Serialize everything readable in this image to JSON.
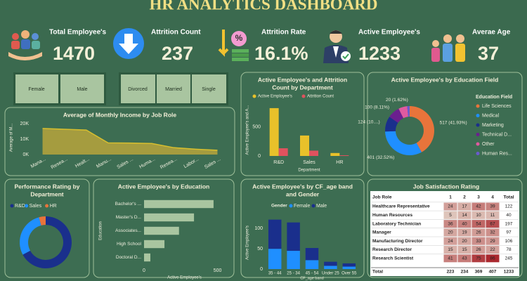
{
  "header": {
    "title": "HR ANALYTICS DASHBOARD"
  },
  "kpis": [
    {
      "label": "Total Employee's",
      "value": "1470"
    },
    {
      "label": "Attrition Count",
      "value": "237"
    },
    {
      "label": "Attrition Rate",
      "value": "16.1%"
    },
    {
      "label": "Active Employee's",
      "value": "1233"
    },
    {
      "label": "Averae Age",
      "value": "37"
    }
  ],
  "filters": [
    [
      "Female",
      "Male"
    ],
    [
      "Divorced",
      "Married",
      "Single"
    ]
  ],
  "chart_data": [
    {
      "type": "area",
      "title": [
        "Average of Monthly Income by Job Role"
      ],
      "y_label": "Average of M...",
      "categories": [
        "Mana...",
        "Resea...",
        "Healt...",
        "Manu...",
        "Sales ...",
        "Huma...",
        "Resea...",
        "Labor...",
        "Sales ..."
      ],
      "values": [
        17000,
        16500,
        16000,
        7600,
        7500,
        7200,
        4500,
        3500,
        2800
      ],
      "color": "#b7a43c",
      "ylim": [
        0,
        22000
      ],
      "yticks": [
        {
          "value": 0,
          "label": "0K"
        },
        {
          "value": 10000,
          "label": "10K"
        },
        {
          "value": 20000,
          "label": "20K"
        }
      ]
    },
    {
      "type": "bar",
      "title": [
        "Active Employee's and Attrition",
        "Count by Department"
      ],
      "x_label": "Department",
      "y_label": "Active Employee's and A...",
      "categories": [
        "R&D",
        "Sales",
        "HR"
      ],
      "series": [
        {
          "name": "Active Employee's",
          "color": "#e8c12a",
          "values": [
            828,
            354,
            51
          ]
        },
        {
          "name": "Attrition Count",
          "color": "#e0525e",
          "values": [
            133,
            92,
            12
          ]
        }
      ],
      "ylim": [
        0,
        900
      ],
      "yticks": [
        0,
        500
      ],
      "legend": "top"
    },
    {
      "type": "donut",
      "title": [
        "Active Employee's by Education Field"
      ],
      "legend_title": "Education Field",
      "categories": [
        "Life Sciences",
        "Medical",
        "Marketing",
        "Technical D...",
        "Other",
        "Human Res..."
      ],
      "values": [
        517,
        401,
        124,
        100,
        71,
        20
      ],
      "value_labels": [
        "517 (41.93%)",
        "401 (32.52%)",
        "124 (10....)",
        "100 (8.11%)",
        null,
        "20 (1.62%)"
      ],
      "colors": [
        "#e8743b",
        "#1f8fff",
        "#1a2f8c",
        "#6b1f8f",
        "#e05aa0",
        "#6a5acd"
      ],
      "legend": "right"
    },
    {
      "type": "donut",
      "title": [
        "Performance Rating by",
        "Department"
      ],
      "categories": [
        "R&D",
        "Sales",
        "HR"
      ],
      "values": [
        828,
        354,
        51
      ],
      "colors": [
        "#1a2f8c",
        "#1f8fff",
        "#e8743b"
      ],
      "legend": "top"
    },
    {
      "type": "hbar",
      "title": [
        "Active Employee's by Education"
      ],
      "y_label": "Education",
      "x_label": "Active Employee's",
      "categories": [
        "Bachelor's ...",
        "Master's D...",
        "Associates...",
        "High School",
        "Doctoral D..."
      ],
      "values": [
        473,
        340,
        238,
        139,
        43
      ],
      "color": "#a9c5a0",
      "xlim": [
        0,
        550
      ],
      "xticks": [
        0,
        500
      ]
    },
    {
      "type": "stacked_bar",
      "title": [
        "Active Employee's by CF_age band",
        "and Gender"
      ],
      "legend_title": "Gender",
      "x_label": "CF_age band",
      "y_label": "Active Employee's",
      "categories": [
        "35 - 44",
        "25 - 34",
        "45 - 54",
        "Under 25",
        "Over 55"
      ],
      "series": [
        {
          "name": "Female",
          "color": "#1f8fff",
          "values": [
            50,
            45,
            22,
            8,
            6
          ]
        },
        {
          "name": "Male",
          "color": "#1a2f8c",
          "values": [
            72,
            70,
            30,
            10,
            8
          ]
        }
      ],
      "ylim": [
        0,
        130
      ],
      "yticks": [
        0,
        50,
        100
      ],
      "legend": "top"
    }
  ],
  "table": {
    "title": "Job Satisfaction Rating",
    "columns": [
      "Job Role",
      "1",
      "2",
      "3",
      "4",
      "Total"
    ],
    "rows": [
      [
        "Healthcare Representative",
        24,
        17,
        42,
        39,
        122
      ],
      [
        "Human Resources",
        5,
        14,
        10,
        11,
        40
      ],
      [
        "Laboratory Technician",
        36,
        40,
        54,
        67,
        197
      ],
      [
        "Manager",
        20,
        19,
        26,
        32,
        97
      ],
      [
        "Manufacturing Director",
        24,
        20,
        33,
        29,
        106
      ],
      [
        "Research Director",
        15,
        15,
        26,
        22,
        78
      ],
      [
        "Research Scientist",
        41,
        43,
        75,
        86,
        245
      ]
    ],
    "total": [
      "Total",
      223,
      234,
      369,
      407,
      1233
    ]
  }
}
